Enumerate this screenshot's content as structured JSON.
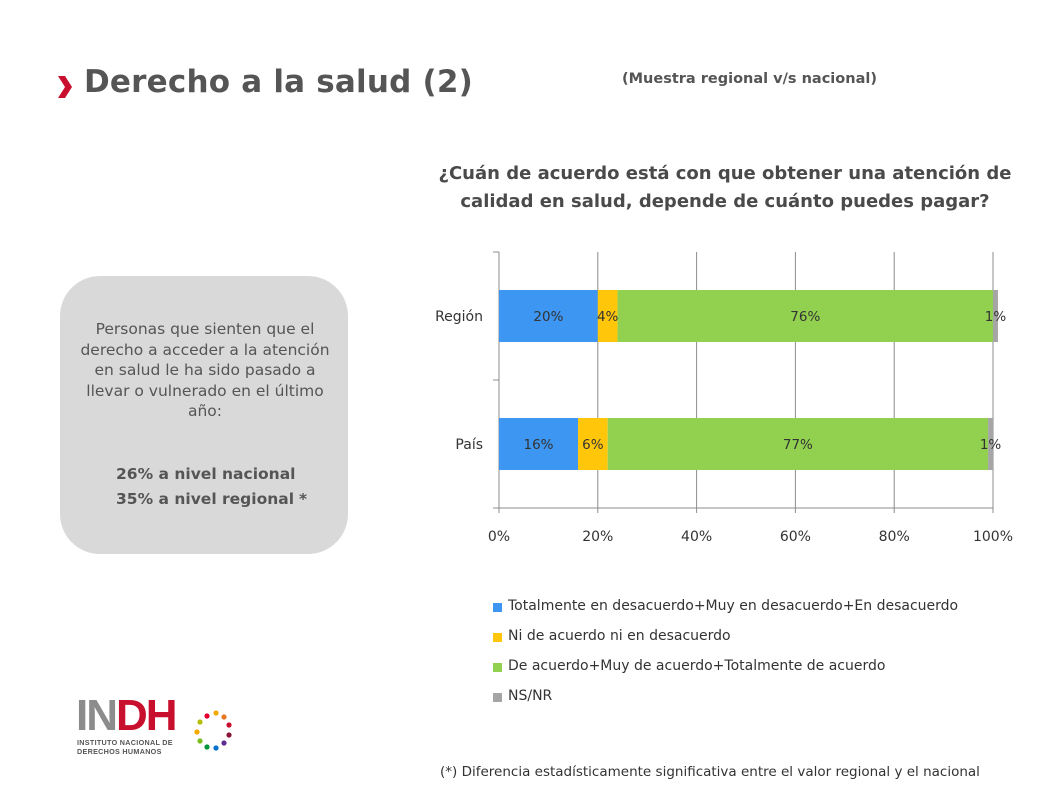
{
  "header": {
    "title": "Derecho a la salud (2)",
    "subtitle": "(Muestra regional v/s nacional)"
  },
  "info_box": {
    "text": "Personas que sienten que el derecho a acceder a la atención en salud le ha sido pasado a llevar o vulnerado en el último año:",
    "stat_national": "26% a nivel nacional",
    "stat_regional": "35% a nivel regional",
    "asterisk": "*"
  },
  "footnote": "(*) Diferencia estadísticamente significativa entre el valor regional y el nacional",
  "logo": {
    "text_ind": "IN",
    "text_dh": "DH",
    "line1": "INSTITUTO NACIONAL DE",
    "line2": "DERECHOS HUMANOS"
  },
  "colors": {
    "accent": "#c8102e",
    "info_box_bg": "#d9d9d9"
  },
  "chart_data": {
    "type": "bar",
    "orientation": "horizontal",
    "stacked": true,
    "percent_stacked": true,
    "title": "¿Cuán de acuerdo está con que obtener una atención de calidad en salud, depende de cuánto puedes pagar?",
    "categories": [
      "Región",
      "País"
    ],
    "series": [
      {
        "name": "Totalmente en desacuerdo+Muy en desacuerdo+En desacuerdo",
        "values": [
          20,
          16
        ],
        "labels": [
          "20%",
          "16%"
        ],
        "color": "#3d96f2"
      },
      {
        "name": "Ni de acuerdo ni en desacuerdo",
        "values": [
          4,
          6
        ],
        "labels": [
          "4%",
          "6%"
        ],
        "color": "#ffc60a"
      },
      {
        "name": "De acuerdo+Muy de acuerdo+Totalmente de acuerdo",
        "values": [
          76,
          77
        ],
        "labels": [
          "76%",
          "77%"
        ],
        "color": "#92d050"
      },
      {
        "name": "NS/NR",
        "values": [
          1,
          1
        ],
        "labels": [
          "1%",
          "1%"
        ],
        "color": "#a5a5a5"
      }
    ],
    "xlim": [
      0,
      100
    ],
    "x_ticks": [
      "0%",
      "20%",
      "40%",
      "60%",
      "80%",
      "100%"
    ],
    "grid": true,
    "legend_position": "bottom"
  }
}
